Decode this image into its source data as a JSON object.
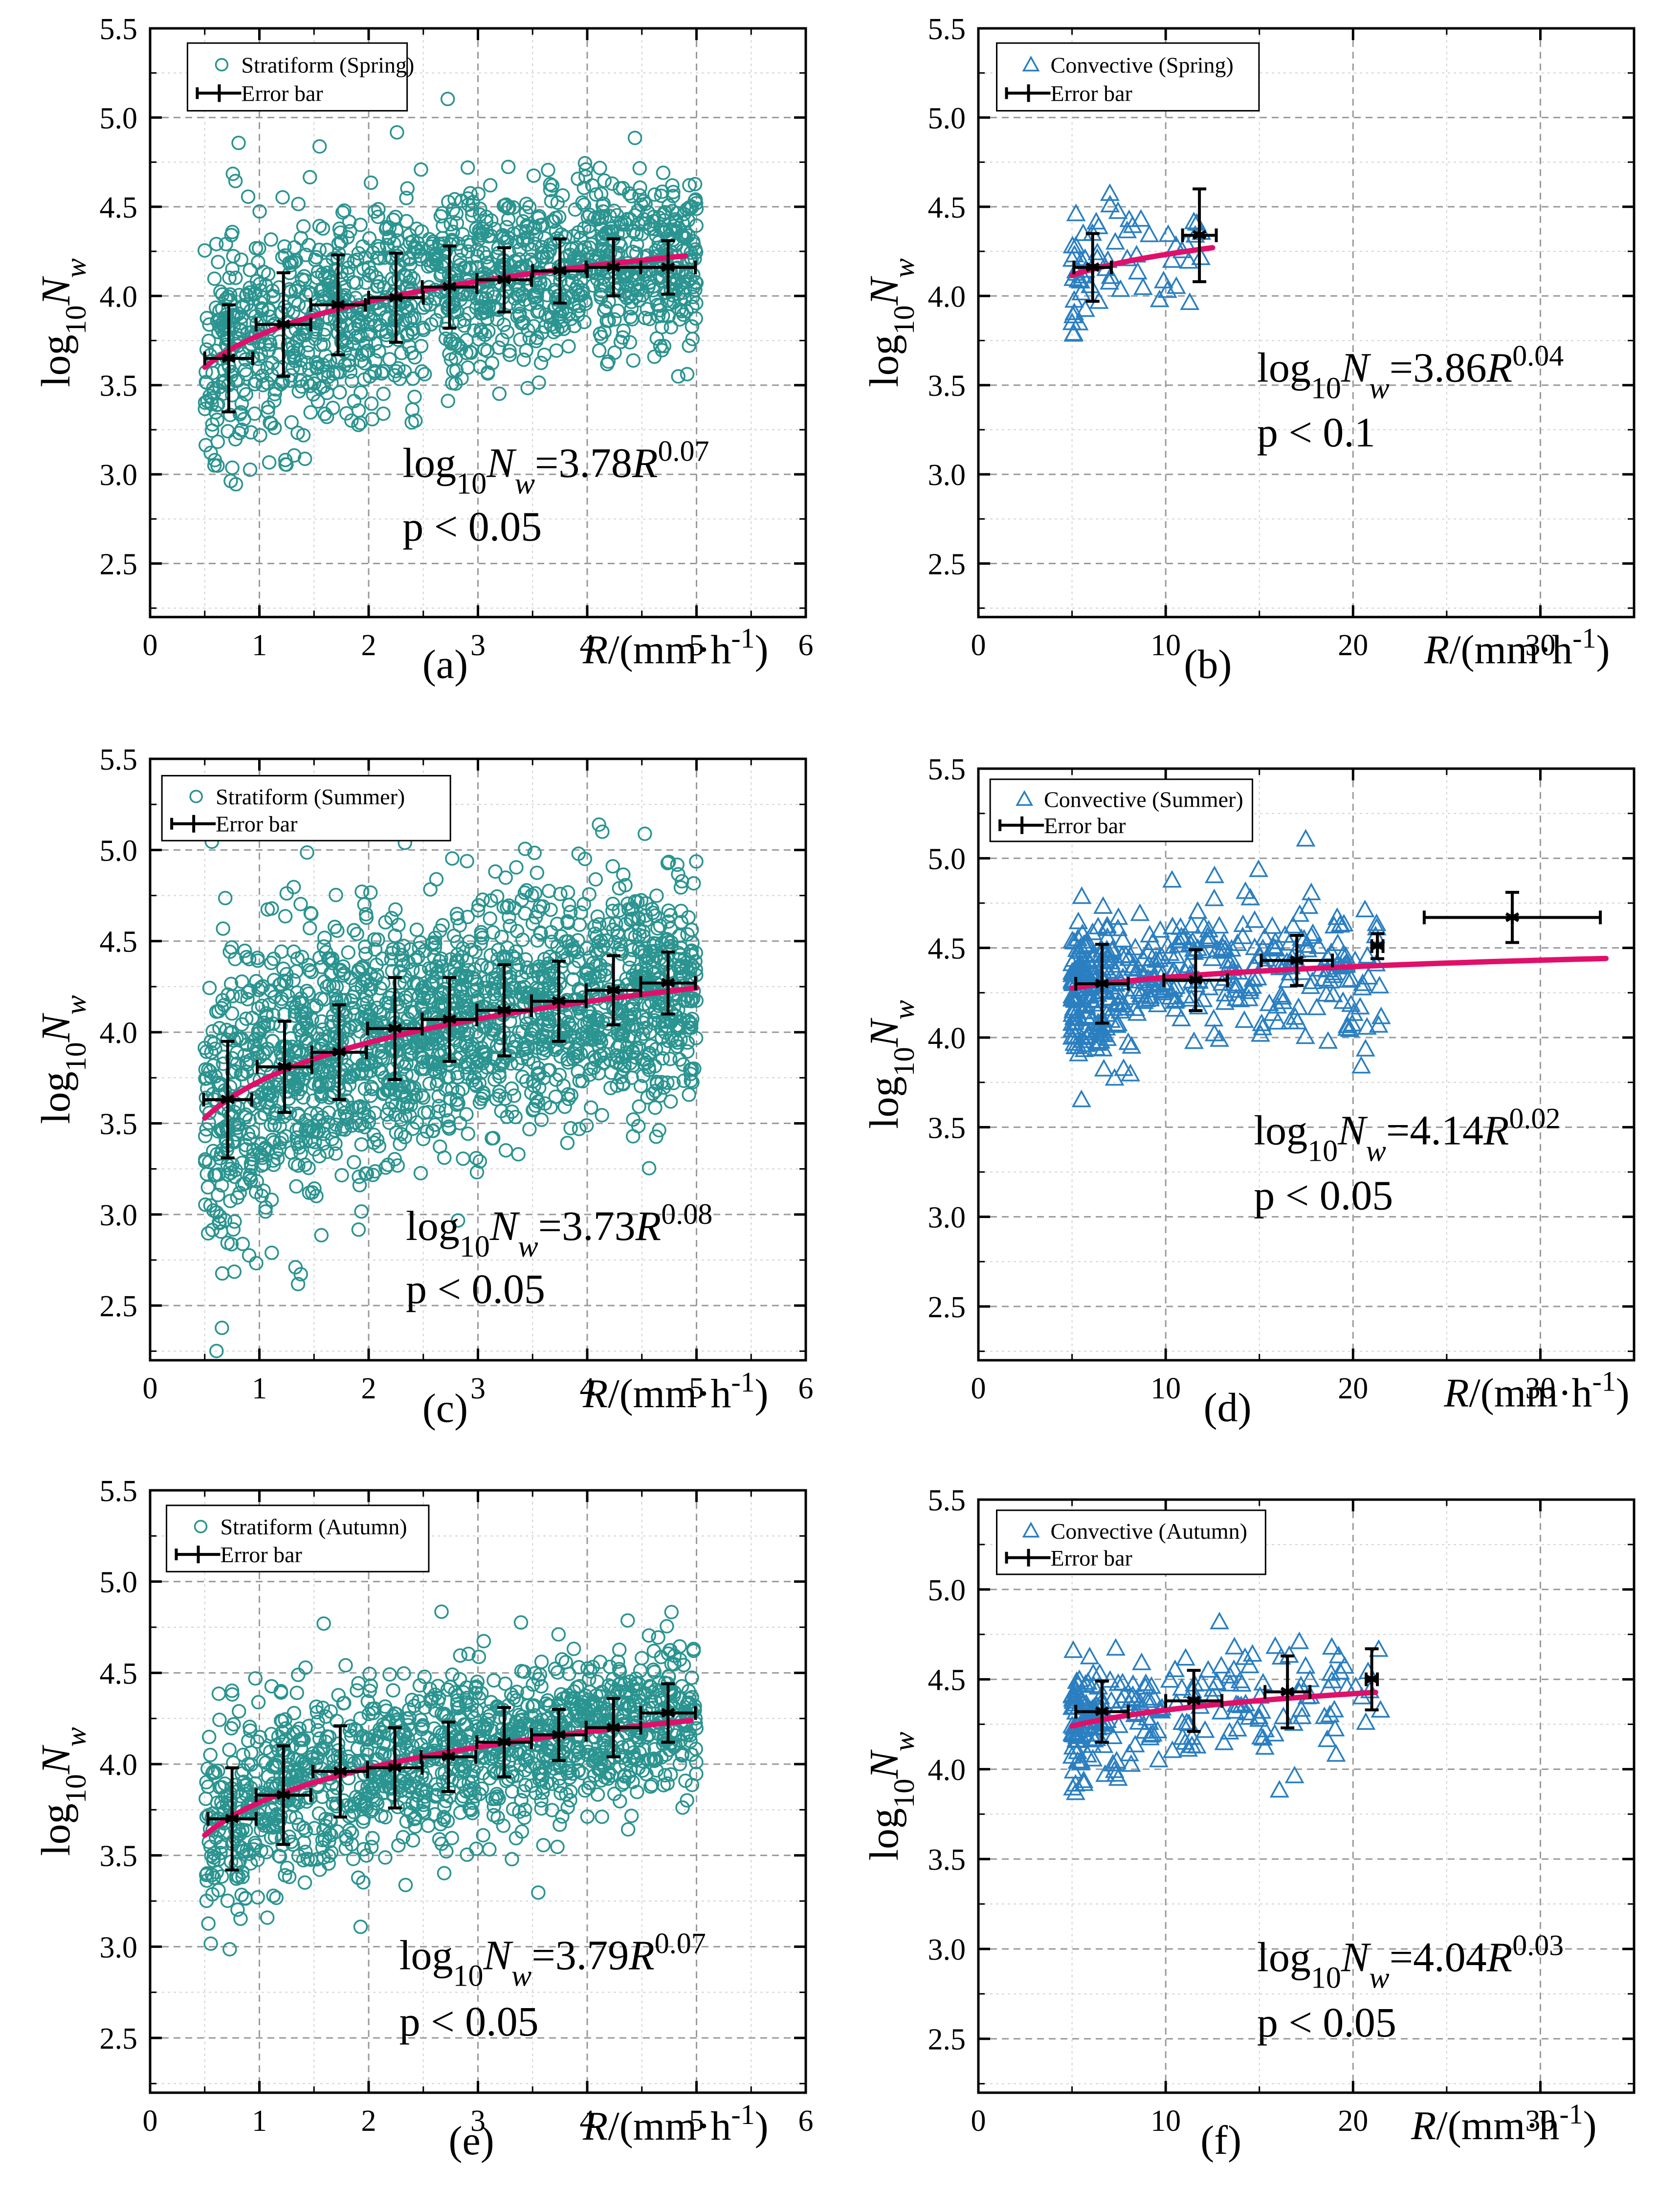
{
  "colors": {
    "stratiform_marker": "#2a9490",
    "convective_marker": "#2a7fc1",
    "fit_line": "#e0106a",
    "error_bar": "#000000"
  },
  "chart_data": [
    {
      "panel": "(a)",
      "type": "scatter",
      "season": "Spring",
      "legend": [
        "Stratiform (Spring)",
        "Error bar"
      ],
      "xlabel": "R/(mm·h-1)",
      "ylabel": "log10Nw",
      "xlim": [
        0,
        6
      ],
      "ylim": [
        2.2,
        5.5
      ],
      "xticks": [
        "0",
        "1",
        "2",
        "3",
        "4",
        "5",
        "6"
      ],
      "yticks": [
        "2.5",
        "3.0",
        "3.5",
        "4.0",
        "4.5",
        "5.0",
        "5.5"
      ],
      "fit": {
        "a": 3.78,
        "b": 0.07,
        "x_range": [
          0.5,
          4.9
        ]
      },
      "equation": "log10Nw=3.78R0.07",
      "p_value": "p < 0.05",
      "error_bars": [
        {
          "x": 0.72,
          "y": 3.65,
          "xerr": 0.22,
          "yerr": 0.3
        },
        {
          "x": 1.22,
          "y": 3.84,
          "xerr": 0.25,
          "yerr": 0.29
        },
        {
          "x": 1.72,
          "y": 3.95,
          "xerr": 0.25,
          "yerr": 0.28
        },
        {
          "x": 2.25,
          "y": 3.99,
          "xerr": 0.25,
          "yerr": 0.25
        },
        {
          "x": 2.74,
          "y": 4.05,
          "xerr": 0.25,
          "yerr": 0.23
        },
        {
          "x": 3.24,
          "y": 4.09,
          "xerr": 0.25,
          "yerr": 0.18
        },
        {
          "x": 3.75,
          "y": 4.14,
          "xerr": 0.25,
          "yerr": 0.18
        },
        {
          "x": 4.24,
          "y": 4.16,
          "xerr": 0.25,
          "yerr": 0.16
        },
        {
          "x": 4.74,
          "y": 4.16,
          "xerr": 0.25,
          "yerr": 0.15
        }
      ],
      "scatter": {
        "marker": "circle",
        "count": 1400,
        "x_range": [
          0.5,
          5.0
        ],
        "spread": 0.26,
        "seed": 11
      }
    },
    {
      "panel": "(b)",
      "type": "scatter",
      "season": "Spring",
      "legend": [
        "Convective (Spring)",
        "Error bar"
      ],
      "xlabel": "R/(mm·h-1)",
      "ylabel": "log10Nw",
      "xlim": [
        0,
        35
      ],
      "ylim": [
        2.2,
        5.5
      ],
      "xticks": [
        "0",
        "10",
        "20",
        "30"
      ],
      "yticks": [
        "2.5",
        "3.0",
        "3.5",
        "4.0",
        "4.5",
        "5.0",
        "5.5"
      ],
      "fit": {
        "a": 3.86,
        "b": 0.04,
        "x_range": [
          5.0,
          12.5
        ]
      },
      "equation": "log10Nw=3.86R0.04",
      "p_value": "p < 0.1",
      "error_bars": [
        {
          "x": 6.1,
          "y": 4.16,
          "xerr": 1.0,
          "yerr": 0.19
        },
        {
          "x": 11.8,
          "y": 4.34,
          "xerr": 0.9,
          "yerr": 0.26
        }
      ],
      "scatter": {
        "marker": "triangle",
        "count": 65,
        "x_range": [
          5.0,
          12.5
        ],
        "spread": 0.18,
        "seed": 22
      }
    },
    {
      "panel": "(c)",
      "type": "scatter",
      "season": "Summer",
      "legend": [
        "Stratiform (Summer)",
        "Error bar"
      ],
      "xlabel": "R/(mm·h-1)",
      "ylabel": "log10Nw",
      "xlim": [
        0,
        6
      ],
      "ylim": [
        2.2,
        5.5
      ],
      "xticks": [
        "0",
        "1",
        "2",
        "3",
        "4",
        "5",
        "6"
      ],
      "yticks": [
        "2.5",
        "3.0",
        "3.5",
        "4.0",
        "4.5",
        "5.0",
        "5.5"
      ],
      "fit": {
        "a": 3.73,
        "b": 0.08,
        "x_range": [
          0.5,
          5.0
        ]
      },
      "equation": "log10Nw=3.73R0.08",
      "p_value": "p < 0.05",
      "error_bars": [
        {
          "x": 0.71,
          "y": 3.63,
          "xerr": 0.22,
          "yerr": 0.32
        },
        {
          "x": 1.23,
          "y": 3.81,
          "xerr": 0.25,
          "yerr": 0.25
        },
        {
          "x": 1.73,
          "y": 3.89,
          "xerr": 0.25,
          "yerr": 0.26
        },
        {
          "x": 2.24,
          "y": 4.02,
          "xerr": 0.25,
          "yerr": 0.28
        },
        {
          "x": 2.74,
          "y": 4.07,
          "xerr": 0.25,
          "yerr": 0.23
        },
        {
          "x": 3.24,
          "y": 4.12,
          "xerr": 0.25,
          "yerr": 0.25
        },
        {
          "x": 3.74,
          "y": 4.17,
          "xerr": 0.25,
          "yerr": 0.22
        },
        {
          "x": 4.24,
          "y": 4.23,
          "xerr": 0.25,
          "yerr": 0.19
        },
        {
          "x": 4.74,
          "y": 4.27,
          "xerr": 0.25,
          "yerr": 0.17
        }
      ],
      "scatter": {
        "marker": "circle",
        "count": 1900,
        "x_range": [
          0.5,
          5.0
        ],
        "spread": 0.33,
        "seed": 33
      }
    },
    {
      "panel": "(d)",
      "type": "scatter",
      "season": "Summer",
      "legend": [
        "Convective (Summer)",
        "Error bar"
      ],
      "xlabel": "R/(mm·h-1)",
      "ylabel": "log10Nw",
      "xlim": [
        0,
        35
      ],
      "ylim": [
        2.2,
        5.5
      ],
      "xticks": [
        "0",
        "10",
        "20",
        "30"
      ],
      "yticks": [
        "2.5",
        "3.0",
        "3.5",
        "4.0",
        "4.5",
        "5.0",
        "5.5"
      ],
      "fit": {
        "a": 4.14,
        "b": 0.02,
        "x_range": [
          5.0,
          33.5
        ]
      },
      "equation": "log10Nw=4.14R0.02",
      "p_value": "p < 0.05",
      "error_bars": [
        {
          "x": 6.6,
          "y": 4.3,
          "xerr": 1.4,
          "yerr": 0.22
        },
        {
          "x": 11.6,
          "y": 4.32,
          "xerr": 1.7,
          "yerr": 0.17
        },
        {
          "x": 17.0,
          "y": 4.43,
          "xerr": 1.9,
          "yerr": 0.14
        },
        {
          "x": 21.3,
          "y": 4.51,
          "xerr": 0.3,
          "yerr": 0.07
        },
        {
          "x": 28.5,
          "y": 4.67,
          "xerr": 4.7,
          "yerr": 0.14
        }
      ],
      "scatter": {
        "marker": "triangle",
        "count": 420,
        "x_range": [
          5.0,
          21.5
        ],
        "spread": 0.21,
        "seed": 44
      }
    },
    {
      "panel": "(e)",
      "type": "scatter",
      "season": "Autumn",
      "legend": [
        "Stratiform (Autumn)",
        "Error bar"
      ],
      "xlabel": "R/(mm·h-1)",
      "ylabel": "log10Nw",
      "xlim": [
        0,
        6
      ],
      "ylim": [
        2.2,
        5.5
      ],
      "xticks": [
        "0",
        "1",
        "2",
        "3",
        "4",
        "5",
        "6"
      ],
      "yticks": [
        "2.5",
        "3.0",
        "3.5",
        "4.0",
        "4.5",
        "5.0",
        "5.5"
      ],
      "fit": {
        "a": 3.79,
        "b": 0.07,
        "x_range": [
          0.5,
          4.95
        ]
      },
      "equation": "log10Nw=3.79R0.07",
      "p_value": "p < 0.05",
      "error_bars": [
        {
          "x": 0.75,
          "y": 3.7,
          "xerr": 0.22,
          "yerr": 0.28
        },
        {
          "x": 1.22,
          "y": 3.83,
          "xerr": 0.25,
          "yerr": 0.27
        },
        {
          "x": 1.74,
          "y": 3.96,
          "xerr": 0.25,
          "yerr": 0.25
        },
        {
          "x": 2.24,
          "y": 3.98,
          "xerr": 0.25,
          "yerr": 0.22
        },
        {
          "x": 2.73,
          "y": 4.04,
          "xerr": 0.25,
          "yerr": 0.19
        },
        {
          "x": 3.24,
          "y": 4.12,
          "xerr": 0.25,
          "yerr": 0.19
        },
        {
          "x": 3.74,
          "y": 4.16,
          "xerr": 0.25,
          "yerr": 0.14
        },
        {
          "x": 4.24,
          "y": 4.2,
          "xerr": 0.25,
          "yerr": 0.16
        },
        {
          "x": 4.74,
          "y": 4.28,
          "xerr": 0.25,
          "yerr": 0.16
        }
      ],
      "scatter": {
        "marker": "circle",
        "count": 1350,
        "x_range": [
          0.5,
          5.0
        ],
        "spread": 0.22,
        "seed": 55
      }
    },
    {
      "panel": "(f)",
      "type": "scatter",
      "season": "Autumn",
      "legend": [
        "Convective (Autumn)",
        "Error bar"
      ],
      "xlabel": "R/(mm·h-1)",
      "ylabel": "log10Nw",
      "xlim": [
        0,
        35
      ],
      "ylim": [
        2.2,
        5.5
      ],
      "xticks": [
        "0",
        "10",
        "20",
        "30"
      ],
      "yticks": [
        "2.5",
        "3.0",
        "3.5",
        "4.0",
        "4.5",
        "5.0",
        "5.5"
      ],
      "fit": {
        "a": 4.04,
        "b": 0.03,
        "x_range": [
          5.0,
          21.2
        ]
      },
      "equation": "log10Nw=4.04R0.03",
      "p_value": "p < 0.05",
      "error_bars": [
        {
          "x": 6.6,
          "y": 4.32,
          "xerr": 1.4,
          "yerr": 0.17
        },
        {
          "x": 11.5,
          "y": 4.38,
          "xerr": 1.5,
          "yerr": 0.17
        },
        {
          "x": 16.5,
          "y": 4.43,
          "xerr": 1.2,
          "yerr": 0.2
        },
        {
          "x": 21.0,
          "y": 4.5,
          "xerr": 0.3,
          "yerr": 0.17
        }
      ],
      "scatter": {
        "marker": "triangle",
        "count": 230,
        "x_range": [
          5.0,
          21.5
        ],
        "spread": 0.16,
        "seed": 66
      }
    }
  ]
}
